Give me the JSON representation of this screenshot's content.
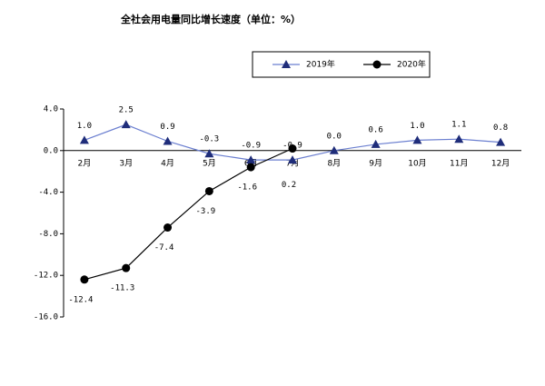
{
  "chart_data": {
    "type": "line",
    "title": "全社会用电量同比增长速度（单位：%）",
    "categories": [
      "2月",
      "3月",
      "4月",
      "5月",
      "6月",
      "7月",
      "8月",
      "9月",
      "10月",
      "11月",
      "12月"
    ],
    "series": [
      {
        "name": "2019年",
        "color": "#1f2d7a",
        "marker": "triangle",
        "values": [
          1.0,
          2.5,
          0.9,
          -0.3,
          -0.9,
          -0.9,
          0.0,
          0.6,
          1.0,
          1.1,
          0.8
        ],
        "value_labels": [
          "1.0",
          "2.5",
          "0.9",
          "-0.3",
          "-0.9",
          "-0.9",
          "0.0",
          "0.6",
          "1.0",
          "1.1",
          "0.8"
        ]
      },
      {
        "name": "2020年",
        "color": "#000000",
        "marker": "circle",
        "values": [
          -12.4,
          -11.3,
          -7.4,
          -3.9,
          -1.6,
          0.2,
          null,
          null,
          null,
          null,
          null
        ]
      }
    ],
    "ylim": [
      -16,
      4
    ],
    "yticks": [
      {
        "value": 4,
        "label": "4.0"
      },
      {
        "value": 0,
        "label": "0.0"
      },
      {
        "value": -4,
        "label": "-4.0"
      },
      {
        "value": -8,
        "label": "-8.0"
      },
      {
        "value": -12,
        "label": "-12.0"
      },
      {
        "value": -16,
        "label": "-16.0"
      }
    ]
  }
}
